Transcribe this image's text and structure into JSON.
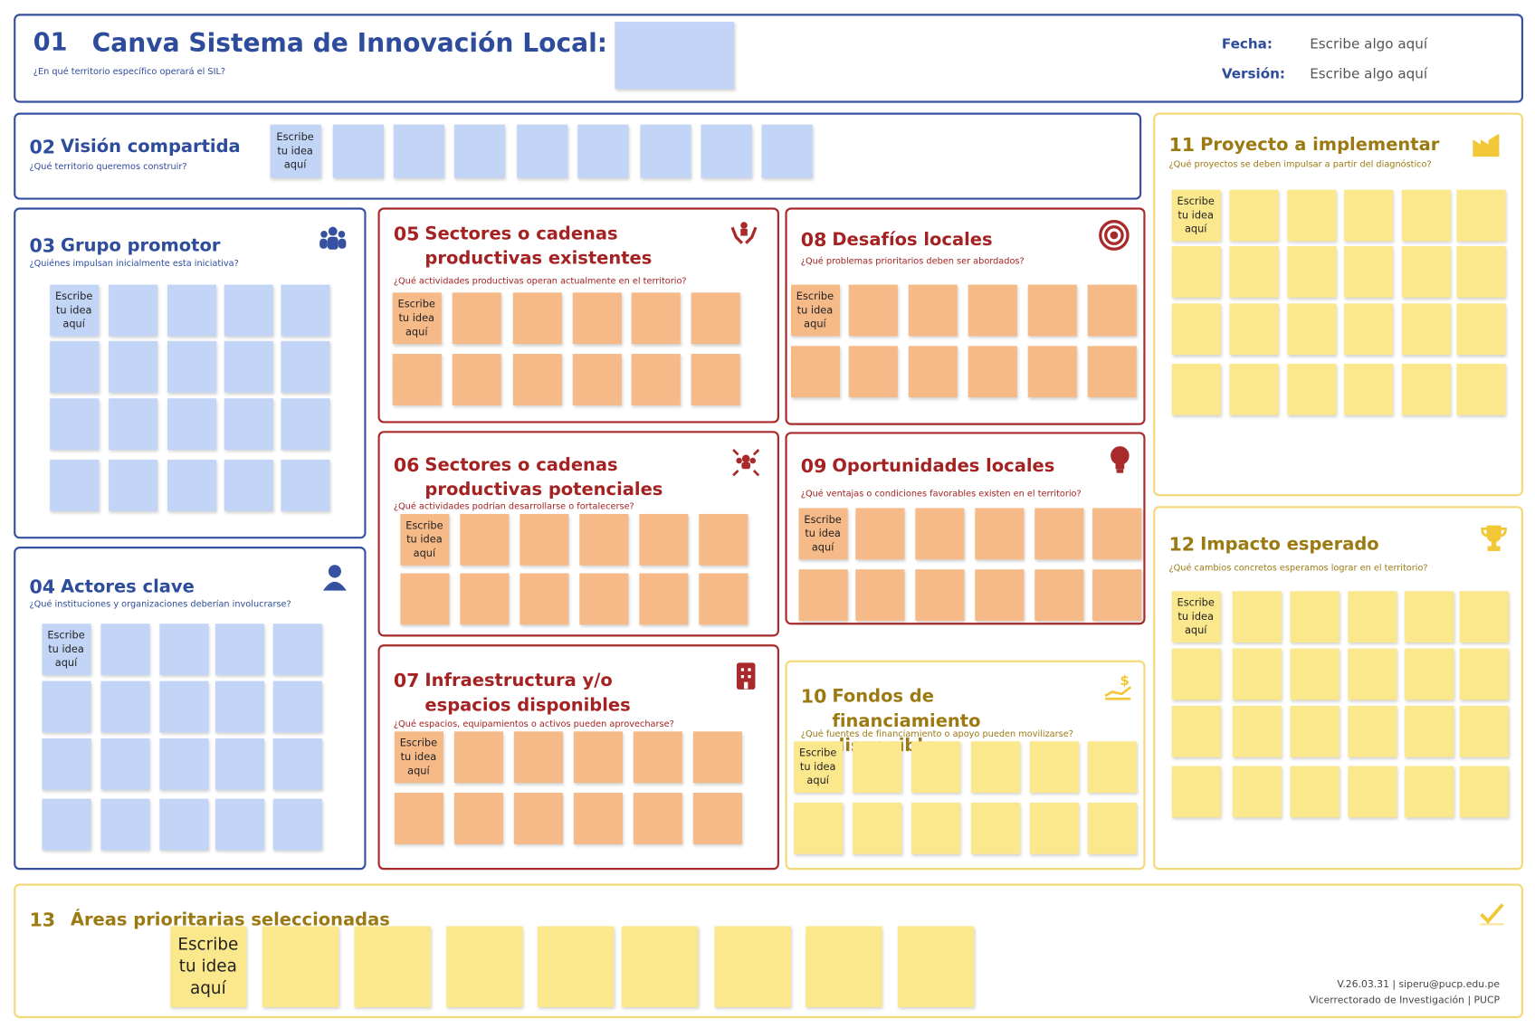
{
  "header": {
    "number": "01",
    "title": "Canva Sistema de Innovación Local:",
    "subtitle": "¿En qué territorio específico operará el SIL?",
    "date_label": "Fecha:",
    "date_value": "Escribe algo aquí",
    "version_label": "Versión:",
    "version_value": "Escribe algo aquí"
  },
  "sections": [
    {
      "number": "02",
      "title": "Visión compartida",
      "subtitle": "¿Qué territorio queremos construir?",
      "note": "Escribe tu idea aquí"
    },
    {
      "number": "03",
      "title": "Grupo promotor",
      "subtitle": "¿Quiénes impulsan inicialmente esta iniciativa?",
      "note": "Escribe tu idea aquí"
    },
    {
      "number": "04",
      "title": "Actores clave",
      "subtitle": "¿Qué instituciones y organizaciones deberían involucrarse?",
      "note": "Escribe tu idea aquí"
    },
    {
      "number": "05",
      "title": "Sectores o cadenas productivas existentes",
      "subtitle": "¿Qué actividades productivas operan actualmente en el territorio?",
      "note": "Escribe tu idea aquí"
    },
    {
      "number": "06",
      "title": "Sectores o cadenas productivas potenciales",
      "subtitle": "¿Qué actividades podrían desarrollarse o fortalecerse?",
      "note": "Escribe tu idea aquí"
    },
    {
      "number": "07",
      "title": "Infraestructura y/o espacios disponibles",
      "subtitle": "¿Qué espacios, equipamientos o activos pueden aprovecharse?",
      "note": "Escribe tu idea aquí"
    },
    {
      "number": "08",
      "title": "Desafíos locales",
      "subtitle": "¿Qué problemas prioritarios deben ser abordados?",
      "note": "Escribe tu idea aquí"
    },
    {
      "number": "09",
      "title": "Oportunidades locales",
      "subtitle": "¿Qué ventajas o condiciones favorables existen en el territorio?",
      "note": "Escribe tu idea aquí"
    },
    {
      "number": "10",
      "title": "Fondos de financiamiento disponible",
      "subtitle": "¿Qué fuentes de financiamiento o apoyo pueden movilizarse?",
      "note": "Escribe tu idea aquí"
    },
    {
      "number": "11",
      "title": "Proyecto a implementar",
      "subtitle": "¿Qué proyectos se deben impulsar a partir del diagnóstico?",
      "note": "Escribe tu idea aquí"
    },
    {
      "number": "12",
      "title": "Impacto esperado",
      "subtitle": "¿Qué cambios concretos esperamos lograr en el territorio?",
      "note": "Escribe tu idea aquí"
    },
    {
      "number": "13",
      "title": "Áreas prioritarias seleccionadas",
      "note": "Escribe tu idea aquí"
    }
  ],
  "footer": {
    "version": "V.26.03.31 | siperu@pucp.edu.pe",
    "institution": "Vicerrectorado de Investigación | PUCP"
  }
}
